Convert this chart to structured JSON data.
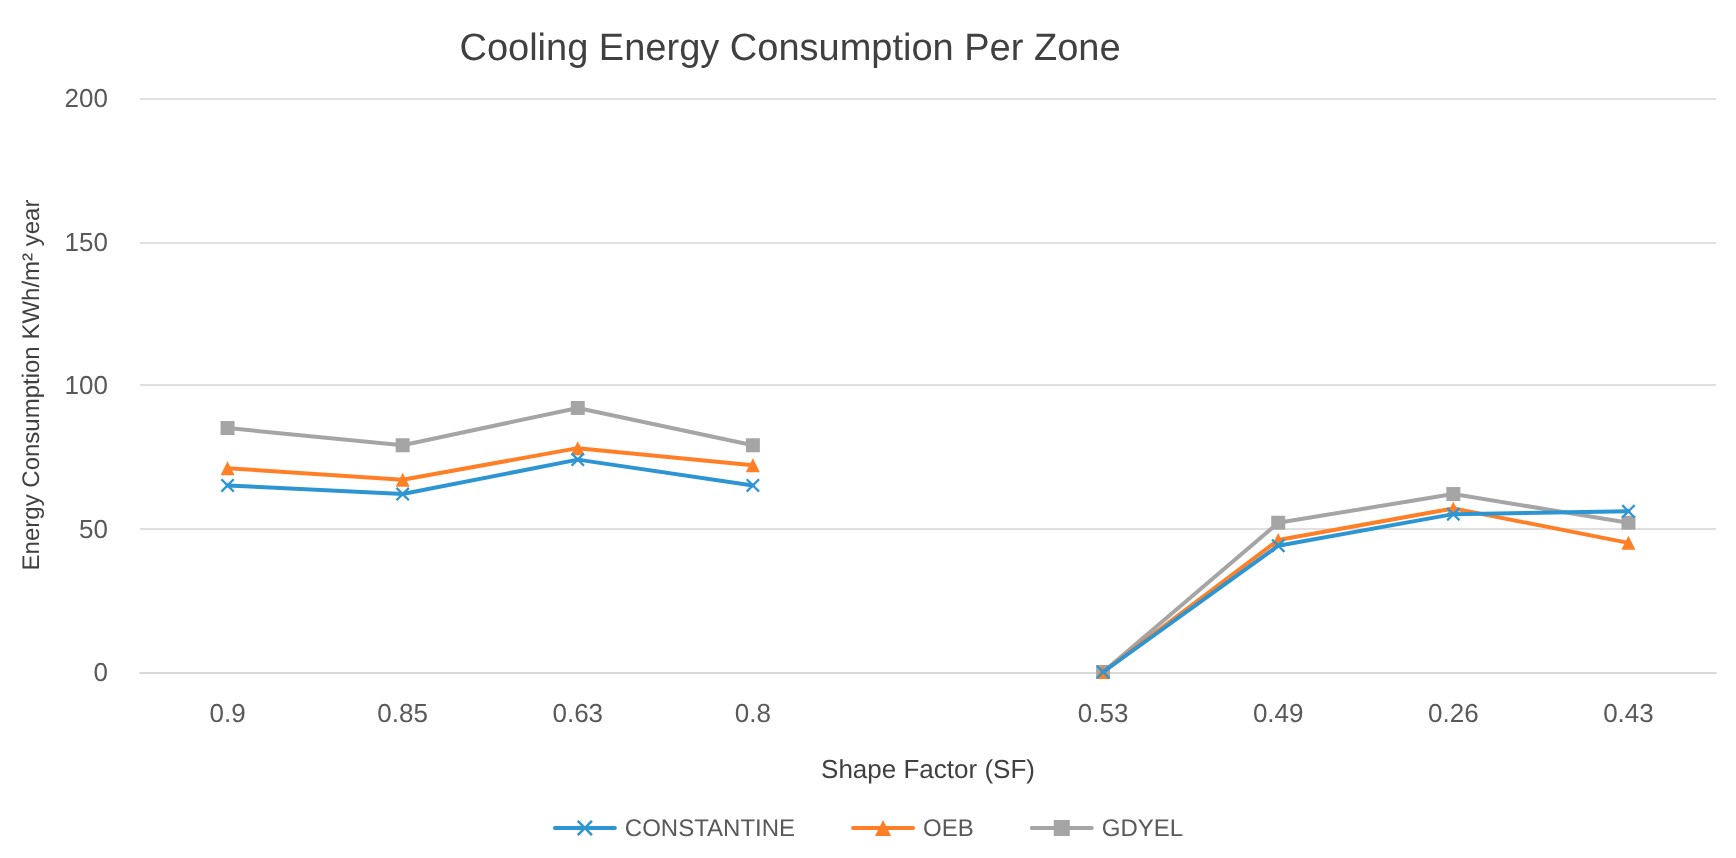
{
  "chart_data": {
    "type": "line",
    "title": "Cooling Energy Consumption Per Zone",
    "xlabel": "Shape Factor (SF)",
    "ylabel": "Energy Consumption KWh/m² year",
    "categories": [
      "0.9",
      "0.85",
      "0.63",
      "0.8",
      null,
      "0.53",
      "0.49",
      "0.26",
      "0.43"
    ],
    "series": [
      {
        "name": "CONSTANTINE",
        "color": "#2e95d3",
        "marker": "cross",
        "values": [
          65,
          62,
          74,
          65,
          null,
          0,
          44,
          55,
          56
        ]
      },
      {
        "name": "OEB",
        "color": "#ff7f27",
        "marker": "triangle",
        "values": [
          71,
          67,
          78,
          72,
          null,
          0,
          46,
          57,
          45
        ]
      },
      {
        "name": "GDYEL",
        "color": "#a5a5a5",
        "marker": "square",
        "values": [
          85,
          79,
          92,
          79,
          null,
          0,
          52,
          62,
          52
        ]
      }
    ],
    "ylim": [
      0,
      200
    ],
    "yticks": [
      0,
      50,
      100,
      150,
      200
    ],
    "grid": "y",
    "legend": "bottom",
    "line_style": "solid"
  }
}
